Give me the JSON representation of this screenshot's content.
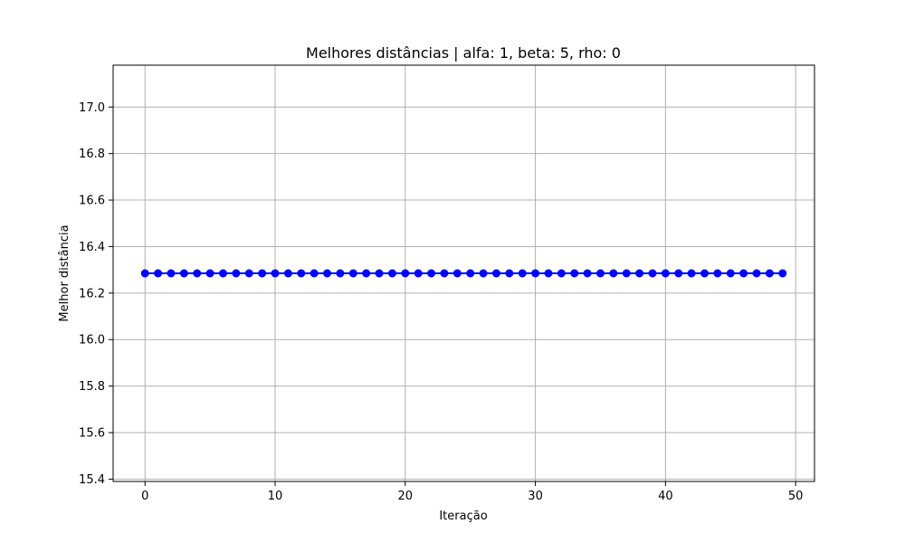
{
  "chart_data": {
    "type": "line",
    "title": "Melhores distâncias | alfa: 1, beta: 5, rho: 0",
    "xlabel": "Iteração",
    "ylabel": "Melhor distância",
    "xlim": [
      -2.45,
      51.45
    ],
    "ylim": [
      15.39,
      17.18
    ],
    "xticks": [
      0,
      10,
      20,
      30,
      40,
      50
    ],
    "xtick_labels": [
      "0",
      "10",
      "20",
      "30",
      "40",
      "50"
    ],
    "yticks": [
      15.4,
      15.6,
      15.8,
      16.0,
      16.2,
      16.4,
      16.6,
      16.8,
      17.0
    ],
    "ytick_labels": [
      "15.4",
      "15.6",
      "15.8",
      "16.0",
      "16.2",
      "16.4",
      "16.6",
      "16.8",
      "17.0"
    ],
    "grid": true,
    "legend": "none",
    "series": [
      {
        "color": "#0000ff",
        "marker": "circle",
        "x": [
          0,
          1,
          2,
          3,
          4,
          5,
          6,
          7,
          8,
          9,
          10,
          11,
          12,
          13,
          14,
          15,
          16,
          17,
          18,
          19,
          20,
          21,
          22,
          23,
          24,
          25,
          26,
          27,
          28,
          29,
          30,
          31,
          32,
          33,
          34,
          35,
          36,
          37,
          38,
          39,
          40,
          41,
          42,
          43,
          44,
          45,
          46,
          47,
          48,
          49
        ],
        "values": [
          16.285,
          16.285,
          16.285,
          16.285,
          16.285,
          16.285,
          16.285,
          16.285,
          16.285,
          16.285,
          16.285,
          16.285,
          16.285,
          16.285,
          16.285,
          16.285,
          16.285,
          16.285,
          16.285,
          16.285,
          16.285,
          16.285,
          16.285,
          16.285,
          16.285,
          16.285,
          16.285,
          16.285,
          16.285,
          16.285,
          16.285,
          16.285,
          16.285,
          16.285,
          16.285,
          16.285,
          16.285,
          16.285,
          16.285,
          16.285,
          16.285,
          16.285,
          16.285,
          16.285,
          16.285,
          16.285,
          16.285,
          16.285,
          16.285,
          16.285
        ]
      }
    ]
  }
}
